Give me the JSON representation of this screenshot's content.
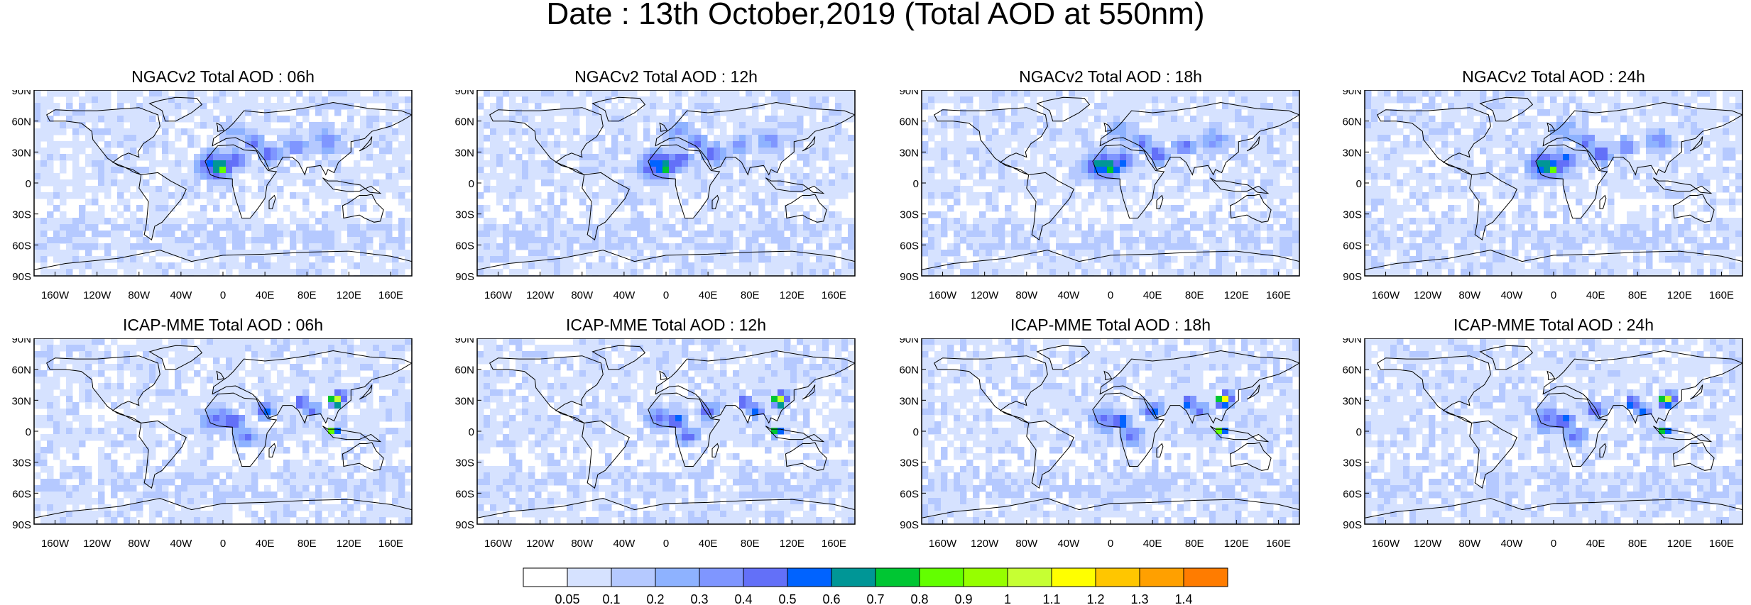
{
  "title": "Date : 13th October,2019 (Total AOD at 550nm)",
  "panels": [
    {
      "title": "NGACv2 Total AOD : 06h",
      "model": "NGACv2",
      "hour": "06h"
    },
    {
      "title": "NGACv2 Total AOD : 12h",
      "model": "NGACv2",
      "hour": "12h"
    },
    {
      "title": "NGACv2 Total AOD : 18h",
      "model": "NGACv2",
      "hour": "18h"
    },
    {
      "title": "NGACv2 Total AOD : 24h",
      "model": "NGACv2",
      "hour": "24h"
    },
    {
      "title": "ICAP-MME Total AOD : 06h",
      "model": "ICAP-MME",
      "hour": "06h"
    },
    {
      "title": "ICAP-MME Total AOD : 12h",
      "model": "ICAP-MME",
      "hour": "12h"
    },
    {
      "title": "ICAP-MME Total AOD : 18h",
      "model": "ICAP-MME",
      "hour": "18h"
    },
    {
      "title": "ICAP-MME Total AOD : 24h",
      "model": "ICAP-MME",
      "hour": "24h"
    }
  ],
  "lat_labels": [
    "90N",
    "60N",
    "30N",
    "0",
    "30S",
    "60S",
    "90S"
  ],
  "lon_labels": [
    "160W",
    "120W",
    "80W",
    "40W",
    "0",
    "40E",
    "80E",
    "120E",
    "160E"
  ],
  "colorbar": {
    "labels": [
      "0.05",
      "0.1",
      "0.2",
      "0.3",
      "0.4",
      "0.5",
      "0.6",
      "0.7",
      "0.8",
      "0.9",
      "1",
      "1.1",
      "1.2",
      "1.3",
      "1.4"
    ],
    "colors": [
      "#ffffff",
      "#d6e2ff",
      "#b5c9ff",
      "#8eb2ff",
      "#7f96ff",
      "#6370f8",
      "#0063ff",
      "#009696",
      "#00c633",
      "#63ff00",
      "#96ff00",
      "#c6ff33",
      "#ffff00",
      "#ffc600",
      "#ffa000",
      "#ff7c00",
      "#ff1900"
    ]
  }
}
